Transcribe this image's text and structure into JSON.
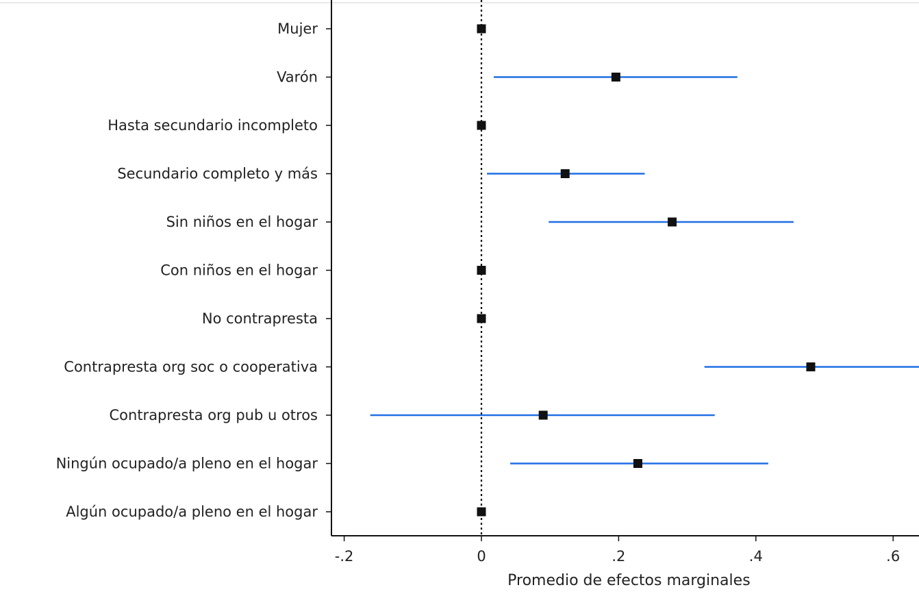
{
  "chart_data": {
    "type": "scatter",
    "subtype": "coefficient-plot",
    "orientation": "horizontal",
    "title": "",
    "xlabel": "Promedio de efectos marginales",
    "ylabel": "",
    "xlim": [
      -0.22,
      0.64
    ],
    "xticks": [
      -0.2,
      0,
      0.2,
      0.4,
      0.6
    ],
    "xtick_labels": [
      "-.2",
      "0",
      ".2",
      ".4",
      ".6"
    ],
    "reference_line": 0,
    "grid": false,
    "marker_color": "#111111",
    "ci_color": "#1f6fe5",
    "categories": [
      "Mujer",
      "Varón",
      "Hasta secundario incompleto",
      "Secundario completo y más",
      "Sin niños en el hogar",
      "Con niños en el hogar",
      "No contrapresta",
      "Contrapresta org soc o cooperativa",
      "Contrapresta org pub u otros",
      "Ningún ocupado/a pleno en el hogar",
      "Algún ocupado/a pleno en el hogar"
    ],
    "estimates": [
      0,
      0.196,
      0,
      0.122,
      0.278,
      0,
      0,
      0.48,
      0.09,
      0.228,
      0
    ],
    "ci_low": [
      null,
      0.018,
      null,
      0.008,
      0.098,
      null,
      null,
      0.325,
      -0.162,
      0.042,
      null
    ],
    "ci_high": [
      null,
      0.373,
      null,
      0.238,
      0.455,
      null,
      null,
      0.64,
      0.34,
      0.418,
      null
    ]
  }
}
